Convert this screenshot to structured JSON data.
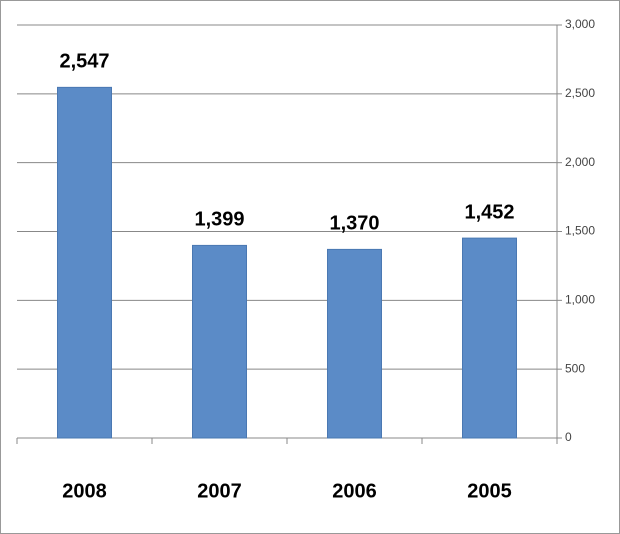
{
  "chart_data": {
    "type": "bar",
    "categories": [
      "2008",
      "2007",
      "2006",
      "2005"
    ],
    "values": [
      2547,
      1399,
      1370,
      1452
    ],
    "value_labels": [
      "2,547",
      "1,399",
      "1,370",
      "1,452"
    ],
    "color": "#5b8bc7",
    "ylim": [
      0,
      3000
    ],
    "yticks": [
      0,
      500,
      {
        "value": 1000,
        "label": "1,000"
      },
      {
        "value": 1500,
        "label": "1,500"
      },
      {
        "value": 2000,
        "label": "2,000"
      },
      {
        "value": 2500,
        "label": "2,500"
      },
      {
        "value": 3000,
        "label": "3,000"
      }
    ],
    "grid": true
  }
}
